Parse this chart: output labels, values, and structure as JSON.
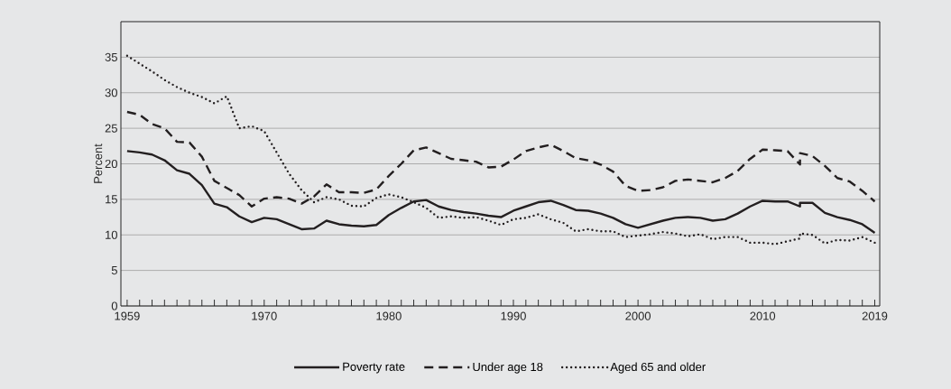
{
  "chart_data": {
    "type": "line",
    "ylabel": "Percent",
    "x": [
      1959,
      1960,
      1961,
      1962,
      1963,
      1964,
      1965,
      1966,
      1967,
      1968,
      1969,
      1970,
      1971,
      1972,
      1973,
      1974,
      1975,
      1976,
      1977,
      1978,
      1979,
      1980,
      1981,
      1982,
      1983,
      1984,
      1985,
      1986,
      1987,
      1988,
      1989,
      1990,
      1991,
      1992,
      1993,
      1994,
      1995,
      1996,
      1997,
      1998,
      1999,
      2000,
      2001,
      2002,
      2003,
      2004,
      2005,
      2006,
      2007,
      2008,
      2009,
      2010,
      2011,
      2012,
      2013,
      2013,
      2014,
      2015,
      2016,
      2017,
      2018,
      2019
    ],
    "series": [
      {
        "name": "Poverty rate",
        "color": "#231f20",
        "line_style": "solid",
        "values": [
          21.8,
          21.6,
          21.3,
          20.5,
          19.1,
          18.6,
          17.0,
          14.4,
          13.9,
          12.6,
          11.8,
          12.4,
          12.2,
          11.5,
          10.8,
          10.9,
          12.0,
          11.5,
          11.3,
          11.2,
          11.4,
          12.8,
          13.8,
          14.7,
          14.9,
          14.0,
          13.5,
          13.2,
          13.0,
          12.7,
          12.5,
          13.4,
          14.0,
          14.6,
          14.8,
          14.2,
          13.5,
          13.4,
          13.0,
          12.4,
          11.5,
          11.0,
          11.5,
          12.0,
          12.4,
          12.5,
          12.4,
          12.0,
          12.2,
          13.0,
          14.0,
          14.8,
          14.7,
          14.7,
          14.0,
          14.5,
          14.5,
          13.1,
          12.5,
          12.1,
          11.5,
          10.3
        ]
      },
      {
        "name": "Under age 18",
        "color": "#231f20",
        "line_style": "dashed",
        "values": [
          27.3,
          26.9,
          25.6,
          25.0,
          23.1,
          23.0,
          21.0,
          17.6,
          16.6,
          15.6,
          14.0,
          15.1,
          15.3,
          15.1,
          14.4,
          15.4,
          17.1,
          16.0,
          16.0,
          15.9,
          16.4,
          18.3,
          20.0,
          21.9,
          22.3,
          21.5,
          20.7,
          20.5,
          20.3,
          19.5,
          19.6,
          20.6,
          21.8,
          22.3,
          22.7,
          21.8,
          20.8,
          20.5,
          19.9,
          18.9,
          16.9,
          16.2,
          16.3,
          16.7,
          17.6,
          17.8,
          17.6,
          17.4,
          18.0,
          19.0,
          20.7,
          22.0,
          21.9,
          21.8,
          19.9,
          21.5,
          21.1,
          19.7,
          18.0,
          17.5,
          16.2,
          14.7
        ]
      },
      {
        "name": "Aged 65 and older",
        "color": "#231f20",
        "line_style": "dotted",
        "values": [
          35.2,
          34.1,
          33.0,
          31.8,
          30.8,
          30.0,
          29.4,
          28.5,
          29.5,
          25.0,
          25.3,
          24.6,
          21.6,
          18.6,
          16.3,
          14.6,
          15.3,
          15.0,
          14.1,
          14.0,
          15.2,
          15.7,
          15.3,
          14.6,
          13.8,
          12.4,
          12.6,
          12.4,
          12.5,
          12.0,
          11.4,
          12.2,
          12.4,
          12.9,
          12.2,
          11.7,
          10.5,
          10.8,
          10.5,
          10.5,
          9.7,
          9.9,
          10.1,
          10.4,
          10.2,
          9.8,
          10.1,
          9.4,
          9.7,
          9.7,
          8.9,
          8.9,
          8.7,
          9.1,
          9.5,
          10.2,
          10.0,
          8.8,
          9.3,
          9.2,
          9.7,
          8.9
        ]
      }
    ],
    "xlim": [
      1958.5,
      2019.4
    ],
    "ylim": [
      0,
      40
    ],
    "xticks": [
      1959,
      {
        "value": 1960,
        "label": null
      },
      {
        "value": 1961,
        "label": null
      },
      {
        "value": 1962,
        "label": null
      },
      {
        "value": 1963,
        "label": null
      },
      {
        "value": 1964,
        "label": null
      },
      {
        "value": 1965,
        "label": null
      },
      {
        "value": 1966,
        "label": null
      },
      {
        "value": 1967,
        "label": null
      },
      {
        "value": 1968,
        "label": null
      },
      {
        "value": 1969,
        "label": null
      },
      1970,
      {
        "value": 1971,
        "label": null
      },
      {
        "value": 1972,
        "label": null
      },
      {
        "value": 1973,
        "label": null
      },
      {
        "value": 1974,
        "label": null
      },
      {
        "value": 1975,
        "label": null
      },
      {
        "value": 1976,
        "label": null
      },
      {
        "value": 1977,
        "label": null
      },
      {
        "value": 1978,
        "label": null
      },
      {
        "value": 1979,
        "label": null
      },
      1980,
      {
        "value": 1981,
        "label": null
      },
      {
        "value": 1982,
        "label": null
      },
      {
        "value": 1983,
        "label": null
      },
      {
        "value": 1984,
        "label": null
      },
      {
        "value": 1985,
        "label": null
      },
      {
        "value": 1986,
        "label": null
      },
      {
        "value": 1987,
        "label": null
      },
      {
        "value": 1988,
        "label": null
      },
      {
        "value": 1989,
        "label": null
      },
      1990,
      {
        "value": 1991,
        "label": null
      },
      {
        "value": 1992,
        "label": null
      },
      {
        "value": 1993,
        "label": null
      },
      {
        "value": 1994,
        "label": null
      },
      {
        "value": 1995,
        "label": null
      },
      {
        "value": 1996,
        "label": null
      },
      {
        "value": 1997,
        "label": null
      },
      {
        "value": 1998,
        "label": null
      },
      {
        "value": 1999,
        "label": null
      },
      2000,
      {
        "value": 2001,
        "label": null
      },
      {
        "value": 2002,
        "label": null
      },
      {
        "value": 2003,
        "label": null
      },
      {
        "value": 2004,
        "label": null
      },
      {
        "value": 2005,
        "label": null
      },
      {
        "value": 2006,
        "label": null
      },
      {
        "value": 2007,
        "label": null
      },
      {
        "value": 2008,
        "label": null
      },
      {
        "value": 2009,
        "label": null
      },
      2010,
      {
        "value": 2011,
        "label": null
      },
      {
        "value": 2012,
        "label": null
      },
      {
        "value": 2013,
        "label": null
      },
      {
        "value": 2014,
        "label": null
      },
      {
        "value": 2015,
        "label": null
      },
      {
        "value": 2016,
        "label": null
      },
      {
        "value": 2017,
        "label": null
      },
      {
        "value": 2018,
        "label": null
      },
      2019
    ],
    "yticks": [
      0,
      5,
      10,
      15,
      20,
      25,
      30,
      35
    ],
    "grid": "y",
    "legend": "bottom"
  }
}
